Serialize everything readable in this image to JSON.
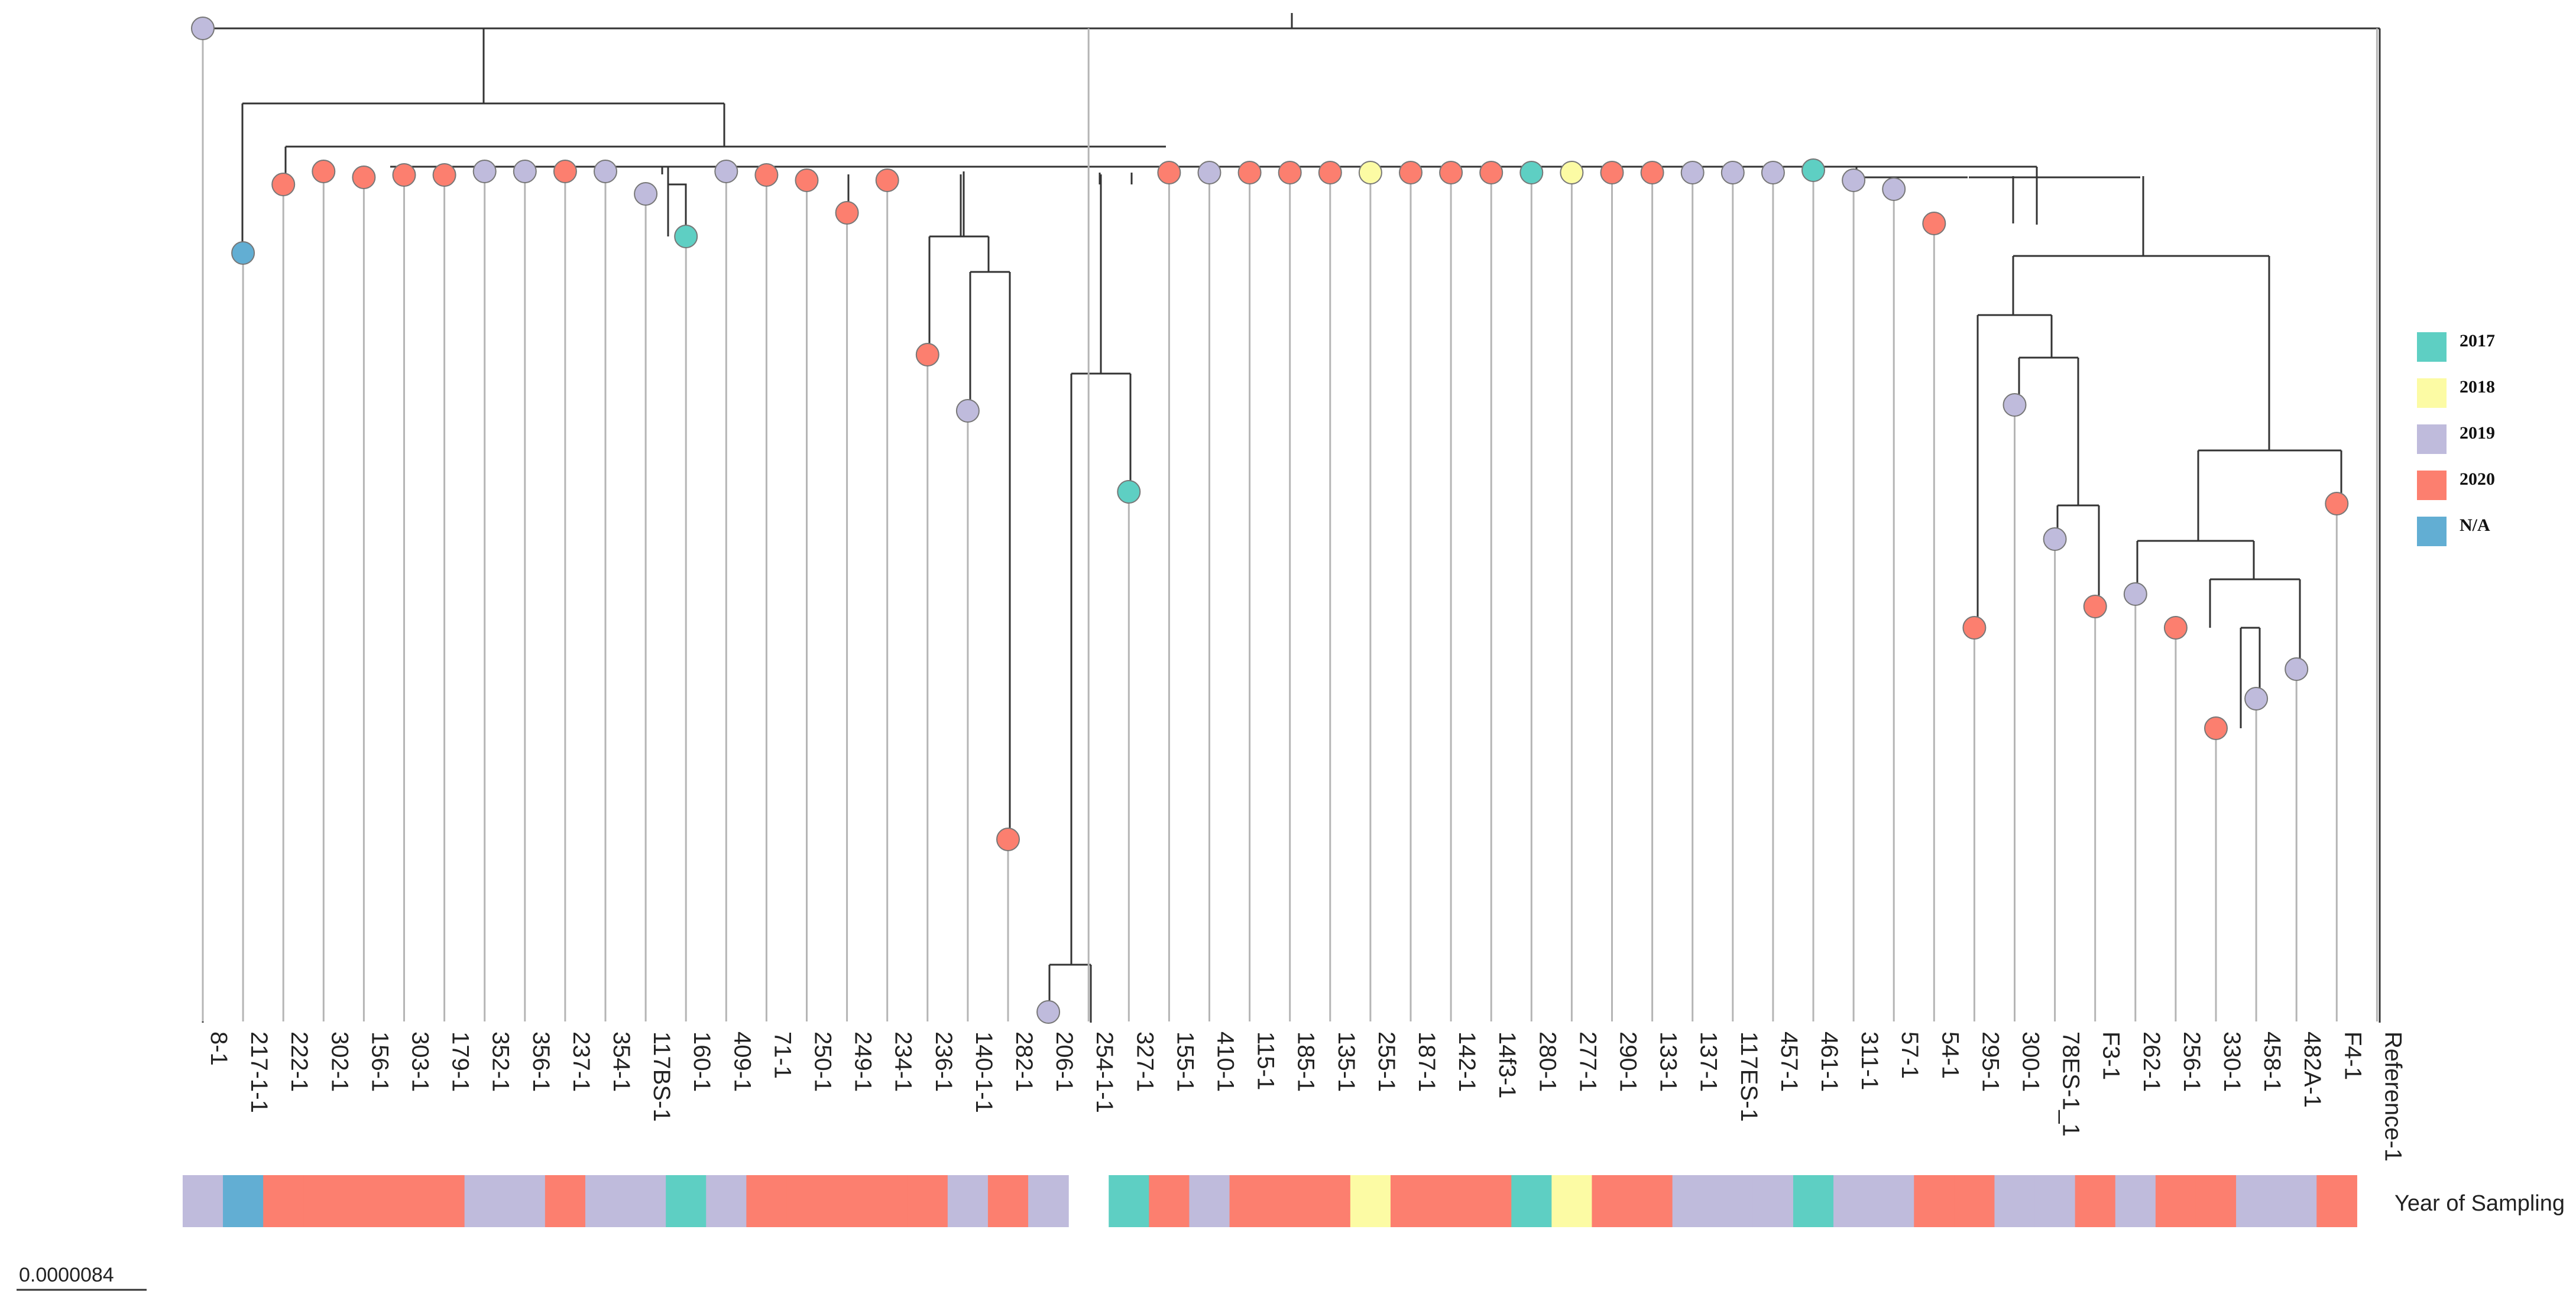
{
  "chart_data": {
    "type": "phylogenetic-tree",
    "colors": {
      "2017": "#5ecfc3",
      "2018": "#fcfba4",
      "2019": "#bfbbdc",
      "2020": "#fc7f6f",
      "N/A": "#62aed3"
    },
    "tips": [
      {
        "label": "8-1",
        "year": "2019"
      },
      {
        "label": "217-1-1",
        "year": "N/A"
      },
      {
        "label": "222-1",
        "year": "2020"
      },
      {
        "label": "302-1",
        "year": "2020"
      },
      {
        "label": "156-1",
        "year": "2020"
      },
      {
        "label": "303-1",
        "year": "2020"
      },
      {
        "label": "179-1",
        "year": "2020"
      },
      {
        "label": "352-1",
        "year": "2019"
      },
      {
        "label": "356-1",
        "year": "2019"
      },
      {
        "label": "237-1",
        "year": "2020"
      },
      {
        "label": "354-1",
        "year": "2019"
      },
      {
        "label": "117BS-1",
        "year": "2019"
      },
      {
        "label": "160-1",
        "year": "2017"
      },
      {
        "label": "409-1",
        "year": "2019"
      },
      {
        "label": "71-1",
        "year": "2020"
      },
      {
        "label": "250-1",
        "year": "2020"
      },
      {
        "label": "249-1",
        "year": "2020"
      },
      {
        "label": "234-1",
        "year": "2020"
      },
      {
        "label": "236-1",
        "year": "2020"
      },
      {
        "label": "140-1-1",
        "year": "2019"
      },
      {
        "label": "282-1",
        "year": "2020"
      },
      {
        "label": "206-1",
        "year": "2019"
      },
      {
        "label": "254-1-1",
        "year": "none"
      },
      {
        "label": "327-1",
        "year": "2017"
      },
      {
        "label": "155-1",
        "year": "2020"
      },
      {
        "label": "410-1",
        "year": "2019"
      },
      {
        "label": "115-1",
        "year": "2020"
      },
      {
        "label": "185-1",
        "year": "2020"
      },
      {
        "label": "135-1",
        "year": "2020"
      },
      {
        "label": "255-1",
        "year": "2018"
      },
      {
        "label": "187-1",
        "year": "2020"
      },
      {
        "label": "142-1",
        "year": "2020"
      },
      {
        "label": "14f3-1",
        "year": "2020"
      },
      {
        "label": "280-1",
        "year": "2017"
      },
      {
        "label": "277-1",
        "year": "2018"
      },
      {
        "label": "290-1",
        "year": "2020"
      },
      {
        "label": "133-1",
        "year": "2020"
      },
      {
        "label": "137-1",
        "year": "2019"
      },
      {
        "label": "117ES-1",
        "year": "2019"
      },
      {
        "label": "457-1",
        "year": "2019"
      },
      {
        "label": "461-1",
        "year": "2017"
      },
      {
        "label": "311-1",
        "year": "2019"
      },
      {
        "label": "57-1",
        "year": "2019"
      },
      {
        "label": "54-1",
        "year": "2020"
      },
      {
        "label": "295-1",
        "year": "2020"
      },
      {
        "label": "300-1",
        "year": "2019"
      },
      {
        "label": "78ES-1_1",
        "year": "2019"
      },
      {
        "label": "F3-1",
        "year": "2020"
      },
      {
        "label": "262-1",
        "year": "2019"
      },
      {
        "label": "256-1",
        "year": "2020"
      },
      {
        "label": "330-1",
        "year": "2020"
      },
      {
        "label": "458-1",
        "year": "2019"
      },
      {
        "label": "482A-1",
        "year": "2019"
      },
      {
        "label": "F4-1",
        "year": "2020"
      },
      {
        "label": "Reference-1",
        "year": "none"
      }
    ],
    "legend": [
      {
        "label": "2017",
        "color": "#5ecfc3"
      },
      {
        "label": "2018",
        "color": "#fcfba4"
      },
      {
        "label": "2019",
        "color": "#bfbbdc"
      },
      {
        "label": "2020",
        "color": "#fc7f6f"
      },
      {
        "label": "N/A",
        "color": "#62aed3"
      }
    ],
    "strip_title": "Year of Sampling",
    "scale_label": "0.0000084"
  }
}
